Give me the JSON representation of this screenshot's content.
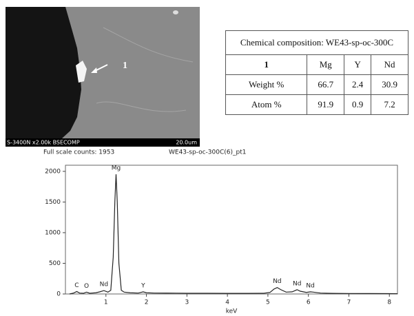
{
  "image": {
    "info": "S-3400N x2.00k BSECOMP",
    "scale": "20.0um",
    "point_label": "1"
  },
  "table": {
    "title": "Chemical composition: WE43-sp-oc-300C",
    "header": [
      "1",
      "Mg",
      "Y",
      "Nd"
    ],
    "rows": [
      [
        "Weight %",
        "66.7",
        "2.4",
        "30.9"
      ],
      [
        "Atom %",
        "91.9",
        "0.9",
        "7.2"
      ]
    ]
  },
  "chart_data": {
    "type": "line",
    "title": "Full scale counts: 1953",
    "subtitle": "WE43-sp-oc-300C(6)_pt1",
    "x_label": "keV",
    "color": "#222222",
    "x": [
      0.1,
      0.2,
      0.28,
      0.35,
      0.45,
      0.52,
      0.6,
      0.75,
      0.85,
      0.95,
      1.05,
      1.12,
      1.18,
      1.22,
      1.25,
      1.28,
      1.32,
      1.38,
      1.45,
      1.6,
      1.8,
      1.92,
      2.0,
      2.2,
      2.5,
      3.0,
      3.5,
      4.0,
      4.5,
      4.9,
      5.05,
      5.15,
      5.23,
      5.32,
      5.45,
      5.6,
      5.72,
      5.8,
      5.95,
      6.05,
      6.12,
      6.3,
      6.6,
      7.0,
      7.5,
      8.0,
      8.2
    ],
    "values": [
      0,
      15,
      40,
      15,
      12,
      30,
      12,
      20,
      35,
      55,
      30,
      60,
      600,
      1500,
      1953,
      1500,
      500,
      60,
      30,
      20,
      15,
      35,
      20,
      15,
      14,
      12,
      12,
      10,
      10,
      12,
      25,
      80,
      105,
      70,
      30,
      35,
      70,
      45,
      25,
      35,
      30,
      15,
      10,
      8,
      7,
      6,
      5
    ],
    "annotations": [
      {
        "text": "C",
        "x": 0.28
      },
      {
        "text": "O",
        "x": 0.52
      },
      {
        "text": "Nd",
        "x": 0.95
      },
      {
        "text": "Mg",
        "x": 1.25
      },
      {
        "text": "Y",
        "x": 1.92
      },
      {
        "text": "Nd",
        "x": 5.23
      },
      {
        "text": "Nd",
        "x": 5.72
      },
      {
        "text": "Nd",
        "x": 6.05
      }
    ],
    "xlim": [
      0,
      8.2
    ],
    "ylim": [
      0,
      2100
    ],
    "xticks": [
      1,
      2,
      3,
      4,
      5,
      6,
      7,
      8
    ],
    "yticks": [
      0,
      500,
      1000,
      1500,
      2000
    ]
  }
}
